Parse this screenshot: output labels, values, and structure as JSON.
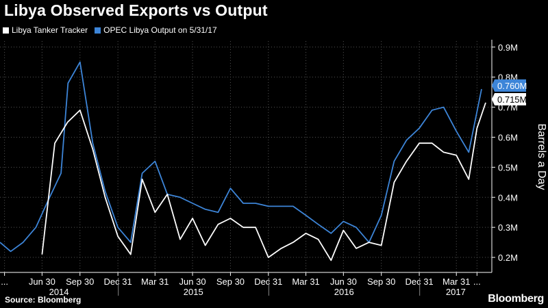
{
  "title": "Libya Observed Exports vs Output",
  "source": "Source: Bloomberg",
  "brand": "Bloomberg",
  "colors": {
    "background": "#000000",
    "tracker": "#ffffff",
    "opec": "#3d85d8",
    "grid": "#555555"
  },
  "chart_data": {
    "type": "line",
    "ylabel": "Barrels a Day",
    "y_axis_side": "right",
    "ylim": [
      0.15,
      0.92
    ],
    "yticks": [
      {
        "value": 0.2,
        "label": "0.2M"
      },
      {
        "value": 0.3,
        "label": "0.3M"
      },
      {
        "value": 0.4,
        "label": "0.4M"
      },
      {
        "value": 0.5,
        "label": "0.5M"
      },
      {
        "value": 0.6,
        "label": "0.6M"
      },
      {
        "value": 0.7,
        "label": "0.7M"
      },
      {
        "value": 0.8,
        "label": "0.8M"
      },
      {
        "value": 0.9,
        "label": "0.9M"
      }
    ],
    "xlim": [
      "2014-03-20",
      "2017-06-25"
    ],
    "xticks": [
      {
        "date": "2014-03-31",
        "label": "..."
      },
      {
        "date": "2014-06-30",
        "label": "Jun 30"
      },
      {
        "date": "2014-09-30",
        "label": "Sep 30"
      },
      {
        "date": "2014-12-31",
        "label": "Dec 31"
      },
      {
        "date": "2015-03-31",
        "label": "Mar 31"
      },
      {
        "date": "2015-06-30",
        "label": "Jun 30"
      },
      {
        "date": "2015-09-30",
        "label": "Sep 30"
      },
      {
        "date": "2015-12-31",
        "label": "Dec 31"
      },
      {
        "date": "2016-03-31",
        "label": "Mar 31"
      },
      {
        "date": "2016-06-30",
        "label": "Jun 30"
      },
      {
        "date": "2016-09-30",
        "label": "Sep 30"
      },
      {
        "date": "2016-12-31",
        "label": "Dec 31"
      },
      {
        "date": "2017-03-31",
        "label": "Mar 31"
      },
      {
        "date": "2017-05-20",
        "label": "..."
      }
    ],
    "years": [
      {
        "label": "2014",
        "start": "2014-03-20",
        "end": "2014-12-31"
      },
      {
        "label": "2015",
        "start": "2015-01-01",
        "end": "2015-12-31"
      },
      {
        "label": "2016",
        "start": "2016-01-01",
        "end": "2016-12-31"
      },
      {
        "label": "2017",
        "start": "2017-01-01",
        "end": "2017-06-25"
      }
    ],
    "legend_position": "top-left",
    "grid": true,
    "series": [
      {
        "name": "Libya Tanker Tracker",
        "color": "#ffffff",
        "last_label": "0.715M",
        "points": [
          [
            "2014-06-30",
            0.21
          ],
          [
            "2014-07-31",
            0.58
          ],
          [
            "2014-08-31",
            0.65
          ],
          [
            "2014-09-30",
            0.69
          ],
          [
            "2014-10-31",
            0.56
          ],
          [
            "2014-11-30",
            0.4
          ],
          [
            "2014-12-31",
            0.27
          ],
          [
            "2015-01-31",
            0.21
          ],
          [
            "2015-02-28",
            0.46
          ],
          [
            "2015-03-31",
            0.35
          ],
          [
            "2015-04-30",
            0.41
          ],
          [
            "2015-05-31",
            0.26
          ],
          [
            "2015-06-30",
            0.33
          ],
          [
            "2015-07-31",
            0.24
          ],
          [
            "2015-08-31",
            0.31
          ],
          [
            "2015-09-30",
            0.33
          ],
          [
            "2015-10-31",
            0.3
          ],
          [
            "2015-11-30",
            0.3
          ],
          [
            "2015-12-31",
            0.2
          ],
          [
            "2016-01-31",
            0.23
          ],
          [
            "2016-02-29",
            0.25
          ],
          [
            "2016-03-31",
            0.28
          ],
          [
            "2016-04-30",
            0.26
          ],
          [
            "2016-05-31",
            0.19
          ],
          [
            "2016-06-30",
            0.29
          ],
          [
            "2016-07-31",
            0.23
          ],
          [
            "2016-08-31",
            0.25
          ],
          [
            "2016-09-30",
            0.24
          ],
          [
            "2016-10-31",
            0.45
          ],
          [
            "2016-11-30",
            0.52
          ],
          [
            "2016-12-31",
            0.58
          ],
          [
            "2017-01-31",
            0.58
          ],
          [
            "2017-02-28",
            0.55
          ],
          [
            "2017-03-31",
            0.54
          ],
          [
            "2017-04-30",
            0.46
          ],
          [
            "2017-05-20",
            0.63
          ],
          [
            "2017-06-10",
            0.715
          ]
        ]
      },
      {
        "name": "OPEC Libya Output  on 5/31/17",
        "color": "#3d85d8",
        "last_label": "0.760M",
        "points": [
          [
            "2014-03-20",
            0.25
          ],
          [
            "2014-04-15",
            0.22
          ],
          [
            "2014-05-15",
            0.25
          ],
          [
            "2014-06-15",
            0.3
          ],
          [
            "2014-07-15",
            0.39
          ],
          [
            "2014-08-15",
            0.48
          ],
          [
            "2014-09-01",
            0.78
          ],
          [
            "2014-09-30",
            0.85
          ],
          [
            "2014-10-31",
            0.58
          ],
          [
            "2014-11-30",
            0.42
          ],
          [
            "2014-12-31",
            0.3
          ],
          [
            "2015-01-31",
            0.25
          ],
          [
            "2015-02-28",
            0.48
          ],
          [
            "2015-03-31",
            0.52
          ],
          [
            "2015-04-30",
            0.41
          ],
          [
            "2015-05-31",
            0.4
          ],
          [
            "2015-06-30",
            0.38
          ],
          [
            "2015-07-31",
            0.36
          ],
          [
            "2015-08-31",
            0.35
          ],
          [
            "2015-09-30",
            0.43
          ],
          [
            "2015-10-31",
            0.38
          ],
          [
            "2015-11-30",
            0.38
          ],
          [
            "2015-12-31",
            0.37
          ],
          [
            "2016-01-31",
            0.37
          ],
          [
            "2016-02-29",
            0.37
          ],
          [
            "2016-03-31",
            0.34
          ],
          [
            "2016-04-30",
            0.31
          ],
          [
            "2016-05-31",
            0.28
          ],
          [
            "2016-06-30",
            0.32
          ],
          [
            "2016-07-31",
            0.3
          ],
          [
            "2016-08-31",
            0.25
          ],
          [
            "2016-09-30",
            0.34
          ],
          [
            "2016-10-31",
            0.52
          ],
          [
            "2016-11-30",
            0.59
          ],
          [
            "2016-12-31",
            0.63
          ],
          [
            "2017-01-31",
            0.69
          ],
          [
            "2017-02-28",
            0.7
          ],
          [
            "2017-03-31",
            0.62
          ],
          [
            "2017-04-30",
            0.55
          ],
          [
            "2017-05-31",
            0.76
          ]
        ]
      }
    ]
  }
}
